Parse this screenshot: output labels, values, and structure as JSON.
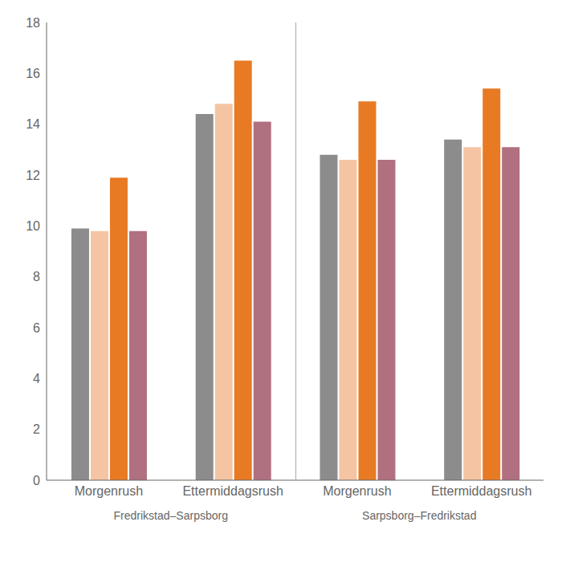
{
  "chart_data": {
    "type": "bar",
    "categories": [
      "Morgenrush",
      "Ettermiddagsrush",
      "Morgenrush",
      "Ettermiddagsrush"
    ],
    "series": [
      {
        "color": "#8C8C8C",
        "values": [
          9.9,
          14.4,
          12.8,
          13.4
        ]
      },
      {
        "color": "#F5C5A3",
        "values": [
          9.8,
          14.8,
          12.6,
          13.1
        ]
      },
      {
        "color": "#E87A24",
        "values": [
          11.9,
          16.5,
          14.9,
          15.4
        ]
      },
      {
        "color": "#B07080",
        "values": [
          9.8,
          14.1,
          12.6,
          13.1
        ]
      }
    ],
    "annotations": [
      "Fredrikstad–Sarpsborg",
      "Sarpsborg–Fredrikstad"
    ],
    "ylim": [
      0,
      18
    ],
    "yticks": [
      0,
      2,
      4,
      6,
      8,
      10,
      12,
      14,
      16,
      18
    ],
    "grid": false
  }
}
